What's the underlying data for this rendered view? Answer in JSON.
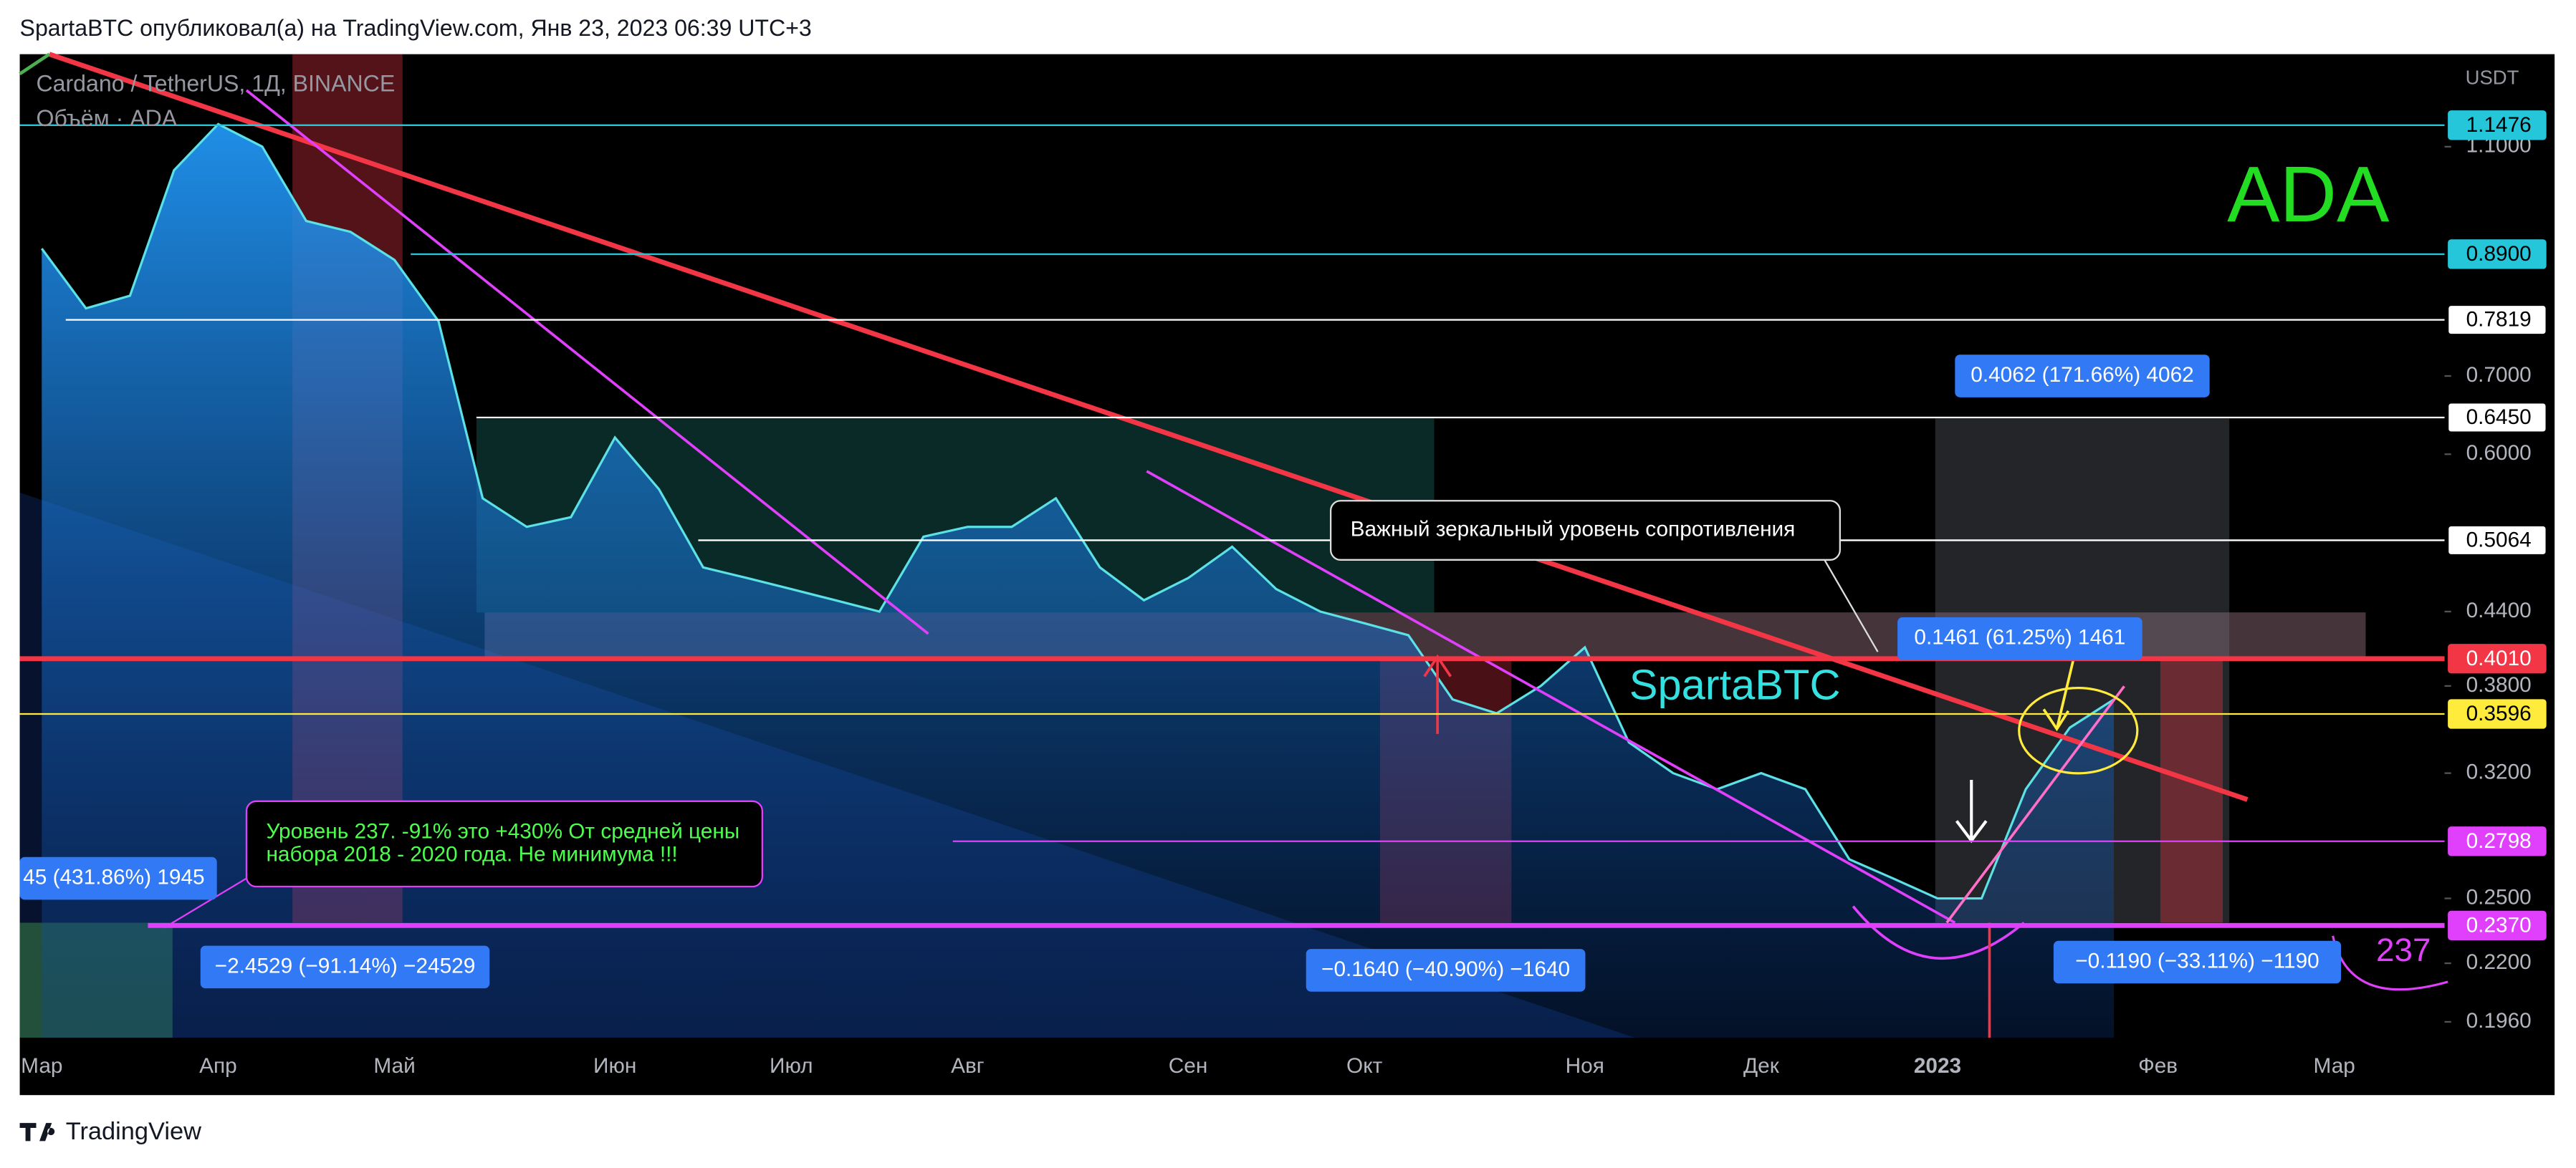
{
  "header": {
    "text": "SpartaBTC опубликовал(а) на TradingView.com, Янв 23, 2023 06:39 UTC+3"
  },
  "chart_data": {
    "type": "area",
    "title": "Cardano / TetherUS, 1Д, BINANCE",
    "subtitle": "Объём · ADA",
    "y_unit": "USDT",
    "log_scale": true,
    "color": "#5ce1e6",
    "categories": [
      "Мар",
      null,
      null,
      null,
      "Апр",
      null,
      null,
      null,
      "Май",
      null,
      null,
      null,
      null,
      "Июн",
      null,
      null,
      null,
      "Июл",
      null,
      null,
      null,
      "Авг",
      null,
      null,
      null,
      null,
      "Сен",
      null,
      null,
      null,
      "Окт",
      null,
      null,
      null,
      null,
      "Ноя",
      null,
      null,
      null,
      "Дек",
      null,
      null,
      null,
      "2023",
      null,
      null,
      null,
      null,
      "Фев",
      null,
      null,
      null,
      "Мар",
      null,
      null
    ],
    "values": [
      0.9,
      0.8,
      0.82,
      1.05,
      1.15,
      1.1,
      0.95,
      0.93,
      0.88,
      0.78,
      0.55,
      0.52,
      0.53,
      0.62,
      0.56,
      0.48,
      0.47,
      0.46,
      0.45,
      0.44,
      0.51,
      0.52,
      0.52,
      0.55,
      0.48,
      0.45,
      0.47,
      0.5,
      0.46,
      0.44,
      0.43,
      0.42,
      0.37,
      0.36,
      0.38,
      0.41,
      0.34,
      0.32,
      0.31,
      0.32,
      0.31,
      0.27,
      0.26,
      0.25,
      0.25,
      0.31,
      0.35,
      0.37,
      null,
      null,
      null,
      null,
      null,
      null,
      null
    ],
    "ylim": [
      0.19,
      1.32
    ],
    "yticks": [
      {
        "value": 1.1,
        "label": "1.1000"
      },
      {
        "value": 0.7,
        "label": "0.7000"
      },
      {
        "value": 0.6,
        "label": "0.6000"
      },
      {
        "value": 0.44,
        "label": "0.4400"
      },
      {
        "value": 0.38,
        "label": "0.3800"
      },
      {
        "value": 0.32,
        "label": "0.3200"
      },
      {
        "value": 0.25,
        "label": "0.2500"
      },
      {
        "value": 0.22,
        "label": "0.2200"
      },
      {
        "value": 0.196,
        "label": "0.1960"
      }
    ],
    "levels": [
      {
        "value": 1.1476,
        "label": "1.1476",
        "color": "#26c6da"
      },
      {
        "value": 0.89,
        "label": "0.8900",
        "color": "#26c6da"
      },
      {
        "value": 0.7819,
        "label": "0.7819",
        "color": "#ffffff"
      },
      {
        "value": 0.645,
        "label": "0.6450",
        "color": "#ffffff"
      },
      {
        "value": 0.5064,
        "label": "0.5064",
        "color": "#ffffff"
      },
      {
        "value": 0.401,
        "label": "0.4010",
        "color": "#f23645"
      },
      {
        "value": 0.3596,
        "label": "0.3596",
        "color": "#ffeb3b"
      },
      {
        "value": 0.2798,
        "label": "0.2798",
        "color": "#e040fb"
      },
      {
        "value": 0.237,
        "label": "0.2370",
        "color": "#e040fb"
      }
    ],
    "annotations": [
      "ADA",
      "SpartaBTC",
      "Важный зеркальный уровень сопротивления",
      [
        "Уровень 237. -91% это +430% От средней цены",
        "набора 2018 - 2020 года. Не минимума !!!"
      ],
      "237"
    ],
    "measurements": [
      "0.4062 (171.66%) 4062",
      "0.1461 (61.25%) 1461",
      "45 (431.86%) 1945",
      "−2.4529 (−91.14%) −24529",
      "−0.1640 (−40.90%) −1640",
      "−0.1190 (−33.11%) −1190"
    ]
  },
  "footer": {
    "brand": "TradingView"
  }
}
